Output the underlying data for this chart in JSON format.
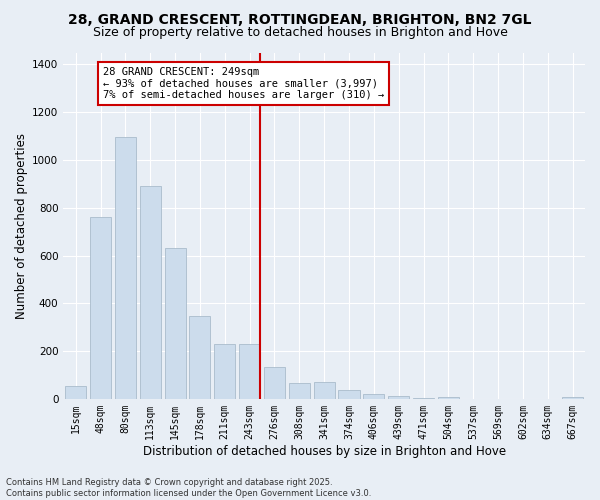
{
  "title1": "28, GRAND CRESCENT, ROTTINGDEAN, BRIGHTON, BN2 7GL",
  "title2": "Size of property relative to detached houses in Brighton and Hove",
  "xlabel": "Distribution of detached houses by size in Brighton and Hove",
  "ylabel": "Number of detached properties",
  "categories": [
    "15sqm",
    "48sqm",
    "80sqm",
    "113sqm",
    "145sqm",
    "178sqm",
    "211sqm",
    "243sqm",
    "276sqm",
    "308sqm",
    "341sqm",
    "374sqm",
    "406sqm",
    "439sqm",
    "471sqm",
    "504sqm",
    "537sqm",
    "569sqm",
    "602sqm",
    "634sqm",
    "667sqm"
  ],
  "bar_heights": [
    55,
    760,
    1095,
    890,
    630,
    345,
    230,
    230,
    135,
    65,
    70,
    35,
    20,
    12,
    5,
    8,
    0,
    0,
    0,
    0,
    8
  ],
  "bar_color": "#ccdcec",
  "bar_edge_color": "#aabccc",
  "vline_color": "#cc0000",
  "annotation_text": "28 GRAND CRESCENT: 249sqm\n← 93% of detached houses are smaller (3,997)\n7% of semi-detached houses are larger (310) →",
  "annotation_box_color": "#cc0000",
  "ylim": [
    0,
    1450
  ],
  "background_color": "#e8eef5",
  "footer": "Contains HM Land Registry data © Crown copyright and database right 2025.\nContains public sector information licensed under the Open Government Licence v3.0.",
  "title1_fontsize": 10,
  "title2_fontsize": 9,
  "xlabel_fontsize": 8.5,
  "ylabel_fontsize": 8.5,
  "tick_fontsize": 7,
  "annot_fontsize": 7.5,
  "footer_fontsize": 6
}
